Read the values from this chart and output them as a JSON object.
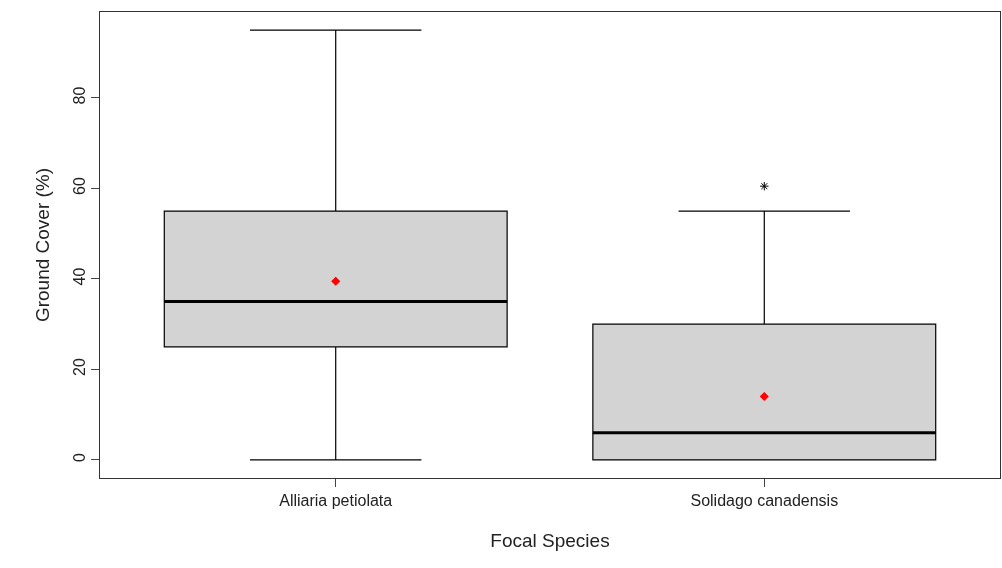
{
  "chart_data": {
    "type": "box",
    "xlabel": "Focal Species",
    "ylabel": "Ground Cover (%)",
    "categories": [
      "Alliaria petiolata",
      "Solidago canadensis"
    ],
    "boxes": [
      {
        "low": 0,
        "q1": 25,
        "median": 35,
        "q3": 55,
        "high": 95,
        "mean": 39.5
      },
      {
        "low": 0,
        "q1": 0,
        "median": 6,
        "q3": 30,
        "high": 55,
        "mean": 14,
        "outliers": [
          60.5
        ]
      }
    ],
    "color": "#d3d3d3",
    "ylim": [
      -4,
      99
    ],
    "yticks": [
      0,
      20,
      40,
      60,
      80
    ]
  }
}
